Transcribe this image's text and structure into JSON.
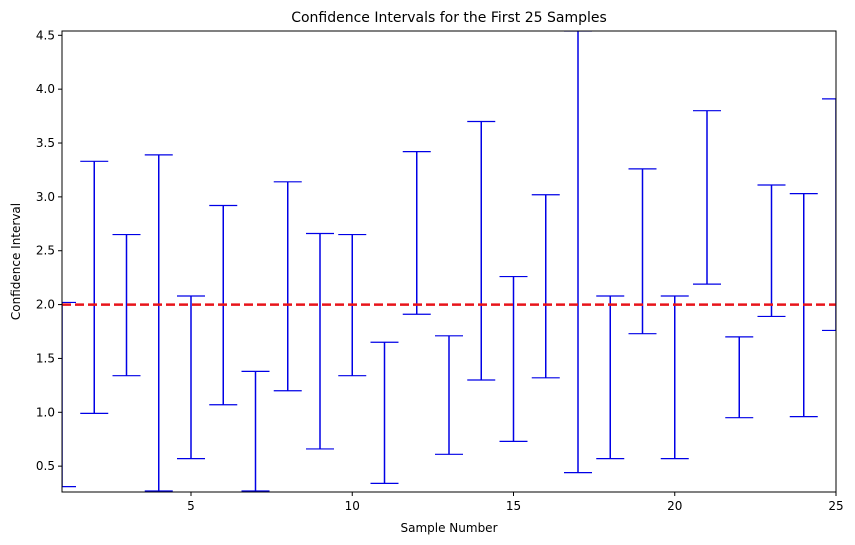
{
  "chart_data": {
    "type": "errorbar",
    "title": "Confidence Intervals for the First 25 Samples",
    "xlabel": "Sample Number",
    "ylabel": "Confidence Interval",
    "xlim": [
      1,
      25
    ],
    "ylim": [
      0.26,
      4.54
    ],
    "xticks": [
      5,
      10,
      15,
      20,
      25
    ],
    "yticks": [
      0.5,
      1.0,
      1.5,
      2.0,
      2.5,
      3.0,
      3.5,
      4.0,
      4.5
    ],
    "ytick_labels": [
      "0.5",
      "1.0",
      "1.5",
      "2.0",
      "2.5",
      "3.0",
      "3.5",
      "4.0",
      "4.5"
    ],
    "reference_line": {
      "y": 2.0,
      "color": "#e8141b",
      "style": "dashed"
    },
    "interval_color": "#0000e6",
    "intervals": [
      {
        "x": 1,
        "lower": 0.31,
        "upper": 2.02
      },
      {
        "x": 2,
        "lower": 0.99,
        "upper": 3.33
      },
      {
        "x": 3,
        "lower": 1.34,
        "upper": 2.65
      },
      {
        "x": 4,
        "lower": 0.27,
        "upper": 3.39
      },
      {
        "x": 5,
        "lower": 0.57,
        "upper": 2.08
      },
      {
        "x": 6,
        "lower": 1.07,
        "upper": 2.92
      },
      {
        "x": 7,
        "lower": 0.27,
        "upper": 1.38
      },
      {
        "x": 8,
        "lower": 1.2,
        "upper": 3.14
      },
      {
        "x": 9,
        "lower": 0.66,
        "upper": 2.66
      },
      {
        "x": 10,
        "lower": 1.34,
        "upper": 2.65
      },
      {
        "x": 11,
        "lower": 0.34,
        "upper": 1.65
      },
      {
        "x": 12,
        "lower": 1.91,
        "upper": 3.42
      },
      {
        "x": 13,
        "lower": 0.61,
        "upper": 1.71
      },
      {
        "x": 14,
        "lower": 1.3,
        "upper": 3.7
      },
      {
        "x": 15,
        "lower": 0.73,
        "upper": 2.26
      },
      {
        "x": 16,
        "lower": 1.32,
        "upper": 3.02
      },
      {
        "x": 17,
        "lower": 0.44,
        "upper": 4.54
      },
      {
        "x": 18,
        "lower": 0.57,
        "upper": 2.08
      },
      {
        "x": 19,
        "lower": 1.73,
        "upper": 3.26
      },
      {
        "x": 20,
        "lower": 0.57,
        "upper": 2.08
      },
      {
        "x": 21,
        "lower": 2.19,
        "upper": 3.8
      },
      {
        "x": 22,
        "lower": 0.95,
        "upper": 1.7
      },
      {
        "x": 23,
        "lower": 1.89,
        "upper": 3.11
      },
      {
        "x": 24,
        "lower": 0.96,
        "upper": 3.03
      },
      {
        "x": 25,
        "lower": 1.76,
        "upper": 3.91
      }
    ]
  }
}
